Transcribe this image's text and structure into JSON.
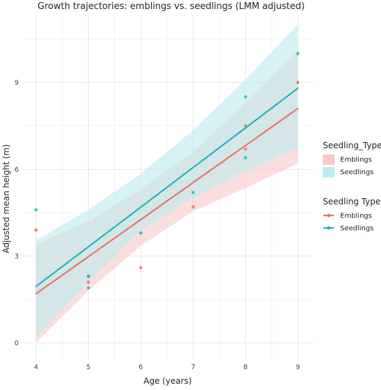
{
  "chart_data": {
    "type": "line",
    "title": "Growth trajectories: emblings vs. seedlings (LMM adjusted)",
    "xlabel": "Age (years)",
    "ylabel": "Adjusted mean height (m)",
    "xlim": [
      3.85,
      9.15
    ],
    "ylim": [
      -0.7,
      11.5
    ],
    "x_ticks": [
      4,
      5,
      6,
      7,
      8,
      9
    ],
    "y_ticks": [
      0,
      3,
      6,
      9
    ],
    "grid": true,
    "legend_placement": "right",
    "legends": [
      {
        "title": "Seedling_Type",
        "kind": "fill",
        "entries": [
          "Emblings",
          "Seedlings"
        ]
      },
      {
        "title": "Seedling Type",
        "kind": "line",
        "entries": [
          "Emblings",
          "Seedlings"
        ]
      }
    ],
    "series": [
      {
        "name": "Emblings",
        "color": "#e6736c",
        "ribbon_color": "#f8c8c8",
        "line": {
          "x": [
            4,
            9
          ],
          "y": [
            1.7,
            8.1
          ]
        },
        "ribbon": {
          "x": [
            4,
            5,
            6,
            7,
            8,
            9
          ],
          "lower": [
            0.0,
            1.8,
            3.35,
            4.55,
            5.35,
            6.2
          ],
          "upper": [
            3.4,
            4.2,
            5.3,
            6.6,
            8.3,
            10.1
          ]
        },
        "points": {
          "x": [
            4,
            5,
            5,
            6,
            7,
            8,
            8,
            9
          ],
          "y": [
            3.9,
            2.3,
            2.1,
            2.6,
            4.7,
            7.5,
            6.7,
            9.0
          ]
        }
      },
      {
        "name": "Seedlings",
        "color": "#1fb4b9",
        "ribbon_color": "#bdebee",
        "line": {
          "x": [
            4,
            9
          ],
          "y": [
            1.95,
            8.8
          ]
        },
        "ribbon": {
          "x": [
            4,
            5,
            6,
            7,
            8,
            9
          ],
          "lower": [
            0.2,
            2.1,
            3.9,
            5.0,
            5.95,
            6.75
          ],
          "upper": [
            3.55,
            4.6,
            5.85,
            7.35,
            9.1,
            11.0
          ]
        },
        "points": {
          "x": [
            4,
            5,
            5,
            6,
            7,
            8,
            8,
            9
          ],
          "y": [
            4.6,
            2.3,
            1.9,
            3.8,
            5.2,
            8.5,
            6.4,
            10.0
          ]
        }
      }
    ]
  }
}
